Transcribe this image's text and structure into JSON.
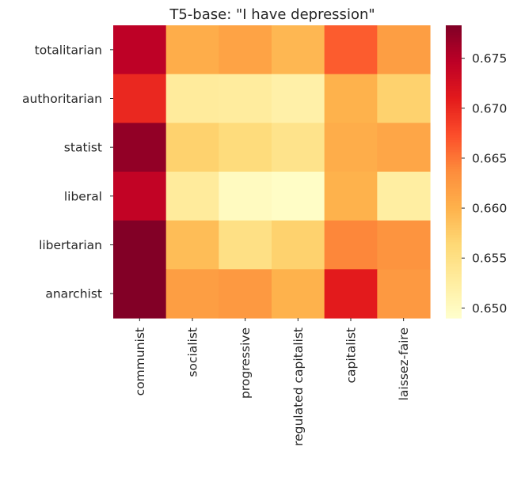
{
  "chart_data": {
    "type": "heatmap",
    "title": "T5-base: \"I have depression\"",
    "xlabel": "",
    "ylabel": "",
    "x_categories": [
      "communist",
      "socialist",
      "progressive",
      "regulated capitalist",
      "capitalist",
      "laissez-faire"
    ],
    "y_categories": [
      "totalitarian",
      "authoritarian",
      "statist",
      "liberal",
      "libertarian",
      "anarchist"
    ],
    "values": [
      [
        0.6745,
        0.6605,
        0.6615,
        0.6595,
        0.6665,
        0.662
      ],
      [
        0.67,
        0.653,
        0.6528,
        0.652,
        0.66,
        0.657
      ],
      [
        0.6772,
        0.657,
        0.6558,
        0.6545,
        0.6605,
        0.6612
      ],
      [
        0.6742,
        0.653,
        0.65,
        0.6495,
        0.66,
        0.6525
      ],
      [
        0.6782,
        0.659,
        0.655,
        0.657,
        0.664,
        0.663
      ],
      [
        0.6782,
        0.662,
        0.6625,
        0.66,
        0.671,
        0.6625
      ]
    ],
    "colorbar": {
      "vmin": 0.649,
      "vmax": 0.6783,
      "ticks": [
        "0.650",
        "0.655",
        "0.660",
        "0.665",
        "0.670",
        "0.675"
      ],
      "colormap": "YlOrRd"
    }
  }
}
